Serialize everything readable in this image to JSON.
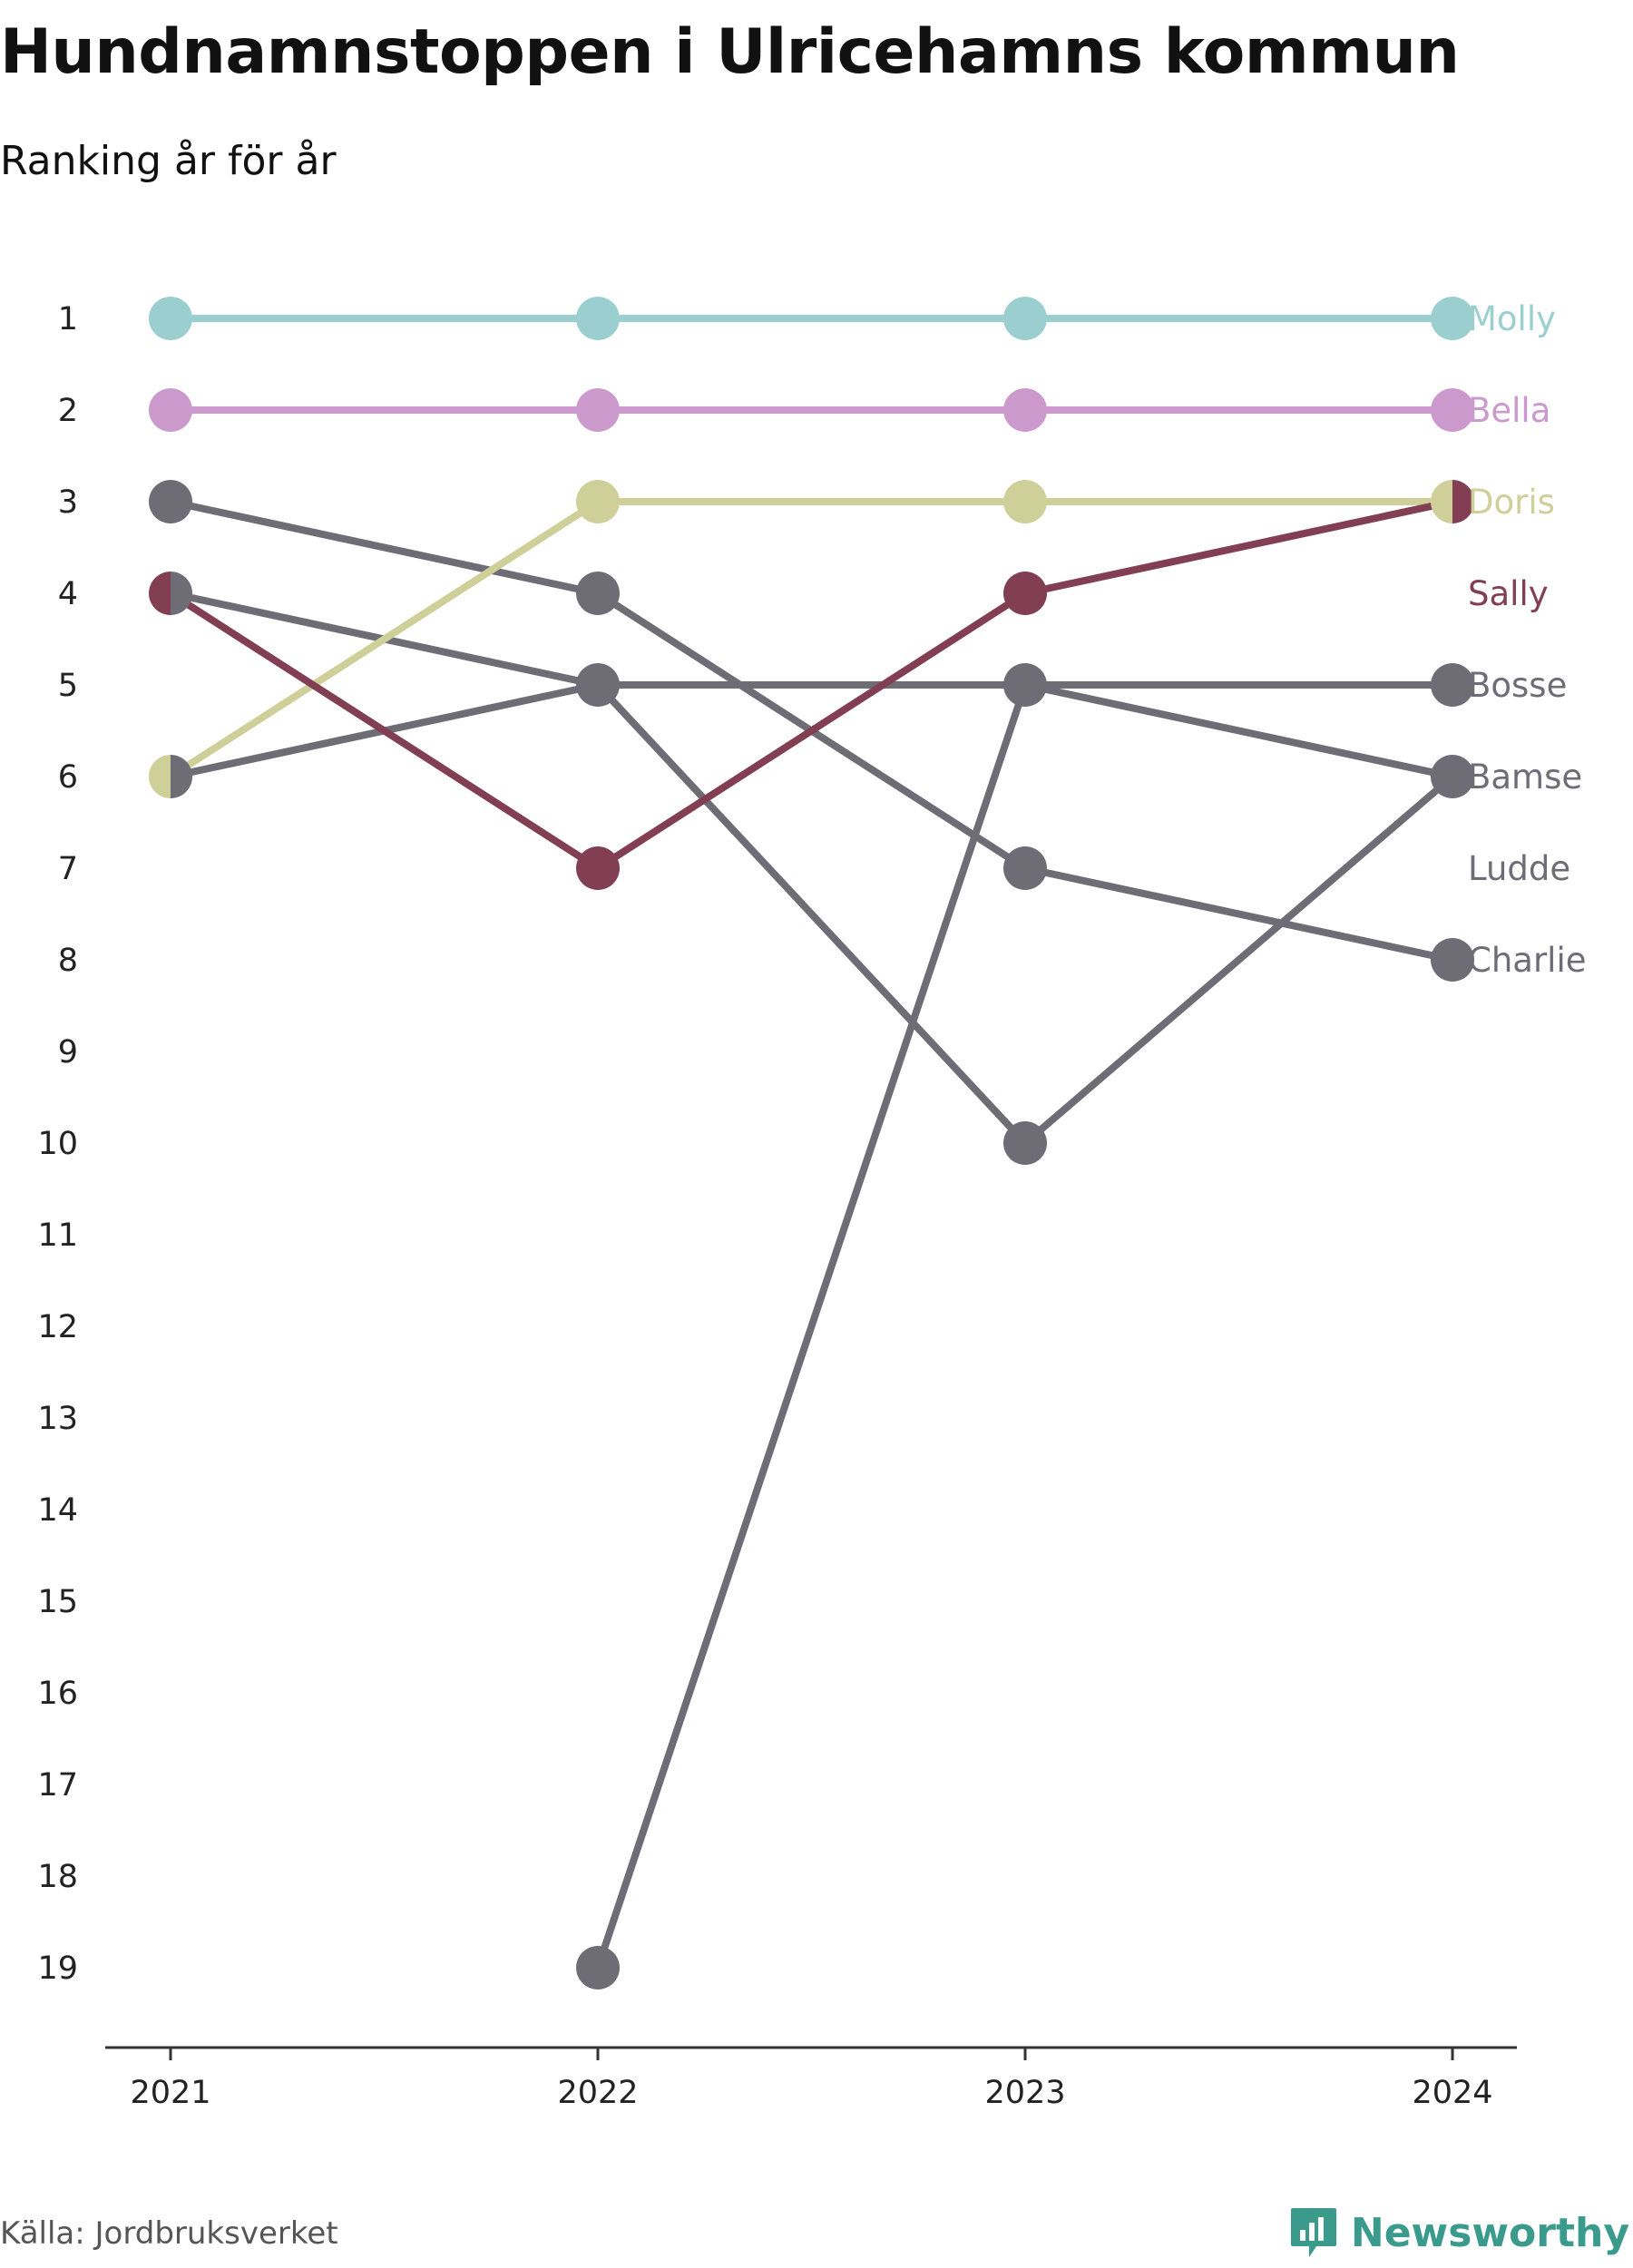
{
  "title": "Hundnamnstoppen i Ulricehamns kommun",
  "subtitle": "Ranking år för år",
  "source": "Källa: Jordbruksverket",
  "brand": "Newsworthy",
  "icons": {
    "brand_logo": "bar-chart-speech-bubble-icon"
  },
  "chart_data": {
    "type": "line",
    "title": "Hundnamnstoppen i Ulricehamns kommun",
    "subtitle": "Ranking år för år",
    "x": [
      "2021",
      "2022",
      "2023",
      "2024"
    ],
    "y_ticks": [
      1,
      2,
      3,
      4,
      5,
      6,
      7,
      8,
      9,
      10,
      11,
      12,
      13,
      14,
      15,
      16,
      17,
      18,
      19
    ],
    "ylim": [
      1,
      19
    ],
    "y_inverted": true,
    "grid": false,
    "series": [
      {
        "name": "Molly",
        "color": "#9bcfcf",
        "values": [
          1,
          1,
          1,
          1
        ]
      },
      {
        "name": "Bella",
        "color": "#cc99cc",
        "values": [
          2,
          2,
          2,
          2
        ]
      },
      {
        "name": "Doris",
        "color": "#cfcf99",
        "values": [
          6,
          3,
          3,
          3
        ]
      },
      {
        "name": "Sally",
        "color": "#823f54",
        "values": [
          4,
          7,
          4,
          3
        ]
      },
      {
        "name": "Bosse",
        "color": "#6e6d75",
        "values": [
          6,
          5,
          5,
          5
        ]
      },
      {
        "name": "Bamse",
        "color": "#6e6d75",
        "values": [
          4,
          5,
          10,
          6
        ]
      },
      {
        "name": "Ludde",
        "color": "#6e6d75",
        "values": [
          null,
          19,
          5,
          6
        ]
      },
      {
        "name": "Charlie",
        "color": "#6e6d75",
        "values": [
          3,
          4,
          7,
          8
        ]
      }
    ]
  }
}
